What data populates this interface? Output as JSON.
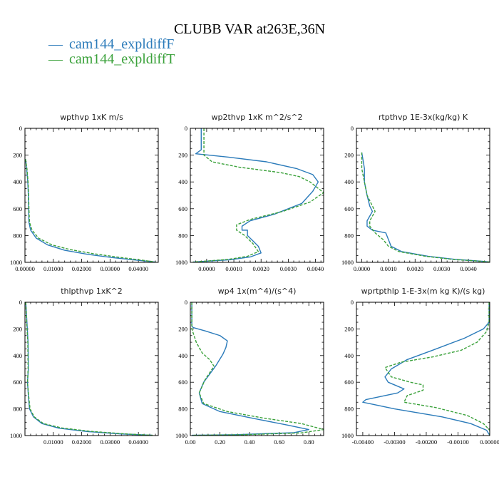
{
  "figure": {
    "title": "CLUBB VAR at263E,36N",
    "legend": [
      {
        "marker": "—",
        "label": "cam144_expldiffF",
        "color": "#2b7bba"
      },
      {
        "marker": "—",
        "label": "cam144_expldiffT",
        "color": "#3aa13a"
      }
    ]
  },
  "chart_data": [
    {
      "type": "line",
      "title": "wpthvp   1xK m/s",
      "xlim": [
        0,
        0.047
      ],
      "ylim": [
        1000,
        0
      ],
      "xticks": [
        0,
        0.01,
        0.02,
        0.03,
        0.04
      ],
      "xtick_labels": [
        "0.00000",
        "0.01000",
        "0.02000",
        "0.03000",
        "0.04000"
      ],
      "yticks": [
        0,
        200,
        400,
        600,
        800,
        1000
      ],
      "ytick_labels": [
        "0",
        "200",
        "400",
        "600",
        "800",
        "1000"
      ],
      "series": [
        {
          "name": "cam144_expldiffF",
          "color": "#2b7bba",
          "dash": "solid",
          "points": [
            [
              0.0002,
              230
            ],
            [
              0.0006,
              300
            ],
            [
              0.001,
              400
            ],
            [
              0.0012,
              500
            ],
            [
              0.0013,
              600
            ],
            [
              0.0014,
              700
            ],
            [
              0.002,
              760
            ],
            [
              0.004,
              820
            ],
            [
              0.008,
              870
            ],
            [
              0.014,
              910
            ],
            [
              0.022,
              940
            ],
            [
              0.031,
              965
            ],
            [
              0.04,
              985
            ],
            [
              0.046,
              998
            ]
          ]
        },
        {
          "name": "cam144_expldiffT",
          "color": "#3aa13a",
          "dash": "dash",
          "points": [
            [
              0.0002,
              230
            ],
            [
              0.0007,
              300
            ],
            [
              0.0011,
              400
            ],
            [
              0.0013,
              500
            ],
            [
              0.0014,
              600
            ],
            [
              0.0016,
              700
            ],
            [
              0.0025,
              760
            ],
            [
              0.0048,
              820
            ],
            [
              0.0095,
              870
            ],
            [
              0.016,
              905
            ],
            [
              0.024,
              935
            ],
            [
              0.033,
              962
            ],
            [
              0.041,
              983
            ],
            [
              0.046,
              998
            ]
          ]
        }
      ]
    },
    {
      "type": "line",
      "title": "wp2thvp   1xK m^2/s^2",
      "xlim": [
        -0.0006,
        0.0043
      ],
      "ylim": [
        1000,
        0
      ],
      "xticks": [
        0,
        0.001,
        0.002,
        0.003,
        0.004
      ],
      "xtick_labels": [
        "0.0000",
        "0.0010",
        "0.0020",
        "0.0030",
        "0.0040"
      ],
      "yticks": [
        0,
        200,
        400,
        600,
        800,
        1000
      ],
      "ytick_labels": [
        "0",
        "200",
        "400",
        "600",
        "800",
        "1000"
      ],
      "series": [
        {
          "name": "cam144_expldiffF",
          "color": "#2b7bba",
          "dash": "solid",
          "points": [
            [
              -0.0002,
              0
            ],
            [
              -0.0002,
              160
            ],
            [
              -0.0004,
              190
            ],
            [
              0.0008,
              215
            ],
            [
              0.0022,
              250
            ],
            [
              0.0033,
              300
            ],
            [
              0.0039,
              345
            ],
            [
              0.0041,
              400
            ],
            [
              0.0039,
              470
            ],
            [
              0.0035,
              560
            ],
            [
              0.0025,
              640
            ],
            [
              0.0016,
              690
            ],
            [
              0.0013,
              730
            ],
            [
              0.0013,
              760
            ],
            [
              0.0015,
              760
            ],
            [
              0.0015,
              800
            ],
            [
              0.0017,
              840
            ],
            [
              0.0019,
              880
            ],
            [
              0.002,
              930
            ],
            [
              0.0016,
              960
            ],
            [
              0.0009,
              980
            ],
            [
              -0.0005,
              998
            ]
          ]
        },
        {
          "name": "cam144_expldiffT",
          "color": "#3aa13a",
          "dash": "dash",
          "points": [
            [
              -0.0001,
              0
            ],
            [
              -0.0001,
              160
            ],
            [
              -0.0001,
              200
            ],
            [
              0.0002,
              250
            ],
            [
              0.0012,
              290
            ],
            [
              0.0027,
              330
            ],
            [
              0.0034,
              360
            ],
            [
              0.0038,
              400
            ],
            [
              0.0043,
              480
            ],
            [
              0.0038,
              550
            ],
            [
              0.0028,
              620
            ],
            [
              0.0016,
              680
            ],
            [
              0.0011,
              720
            ],
            [
              0.0011,
              760
            ],
            [
              0.0014,
              800
            ],
            [
              0.0017,
              860
            ],
            [
              0.0019,
              920
            ],
            [
              0.0015,
              955
            ],
            [
              0.0008,
              978
            ],
            [
              -0.0005,
              998
            ]
          ]
        }
      ]
    },
    {
      "type": "line",
      "title": "rtpthvp   1E-3x(kg/kg) K",
      "xlim": [
        -0.0002,
        0.0048
      ],
      "ylim": [
        1000,
        0
      ],
      "xticks": [
        0,
        0.001,
        0.002,
        0.003,
        0.004
      ],
      "xtick_labels": [
        "0.0000",
        "0.0010",
        "0.0020",
        "0.0030",
        "0.0040"
      ],
      "yticks": [
        0,
        200,
        400,
        600,
        800,
        1000
      ],
      "ytick_labels": [
        "0",
        "200",
        "400",
        "600",
        "800",
        "1000"
      ],
      "series": [
        {
          "name": "cam144_expldiffF",
          "color": "#2b7bba",
          "dash": "solid",
          "points": [
            [
              0.0,
              180
            ],
            [
              0.0001,
              300
            ],
            [
              0.0001,
              400
            ],
            [
              0.0002,
              500
            ],
            [
              0.0003,
              580
            ],
            [
              0.0004,
              620
            ],
            [
              0.0002,
              690
            ],
            [
              0.0002,
              730
            ],
            [
              0.0004,
              760
            ],
            [
              0.0009,
              780
            ],
            [
              0.001,
              830
            ],
            [
              0.0011,
              880
            ],
            [
              0.0015,
              920
            ],
            [
              0.0025,
              955
            ],
            [
              0.0035,
              978
            ],
            [
              0.0045,
              992
            ],
            [
              0.0048,
              998
            ]
          ]
        },
        {
          "name": "cam144_expldiffT",
          "color": "#3aa13a",
          "dash": "dash",
          "points": [
            [
              0.0,
              180
            ],
            [
              0.0,
              300
            ],
            [
              0.0001,
              400
            ],
            [
              0.0002,
              500
            ],
            [
              0.0004,
              580
            ],
            [
              0.0005,
              620
            ],
            [
              0.0003,
              690
            ],
            [
              0.0003,
              730
            ],
            [
              0.0005,
              780
            ],
            [
              0.0008,
              830
            ],
            [
              0.001,
              880
            ],
            [
              0.0014,
              920
            ],
            [
              0.0024,
              955
            ],
            [
              0.0034,
              978
            ],
            [
              0.0045,
              992
            ],
            [
              0.0048,
              998
            ]
          ]
        }
      ]
    },
    {
      "type": "line",
      "title": "thlpthvp   1xK^2",
      "xlim": [
        0,
        0.047
      ],
      "ylim": [
        1000,
        0
      ],
      "xticks": [
        0.01,
        0.02,
        0.03,
        0.04
      ],
      "xtick_labels": [
        "0.01000",
        "0.02000",
        "0.03000",
        "0.04000"
      ],
      "yticks": [
        0,
        200,
        400,
        600,
        800,
        1000
      ],
      "ytick_labels": [
        "0",
        "200",
        "400",
        "600",
        "800",
        "1000"
      ],
      "series": [
        {
          "name": "cam144_expldiffF",
          "color": "#2b7bba",
          "dash": "solid",
          "points": [
            [
              0.0003,
              0
            ],
            [
              0.0007,
              150
            ],
            [
              0.0011,
              300
            ],
            [
              0.0012,
              500
            ],
            [
              0.0009,
              600
            ],
            [
              0.0012,
              700
            ],
            [
              0.0016,
              800
            ],
            [
              0.003,
              860
            ],
            [
              0.006,
              910
            ],
            [
              0.012,
              945
            ],
            [
              0.022,
              970
            ],
            [
              0.034,
              988
            ],
            [
              0.045,
              998
            ]
          ]
        },
        {
          "name": "cam144_expldiffT",
          "color": "#3aa13a",
          "dash": "dash",
          "points": [
            [
              0.0003,
              0
            ],
            [
              0.0006,
              150
            ],
            [
              0.001,
              300
            ],
            [
              0.0011,
              500
            ],
            [
              0.0009,
              600
            ],
            [
              0.0013,
              700
            ],
            [
              0.0018,
              800
            ],
            [
              0.0033,
              860
            ],
            [
              0.0065,
              910
            ],
            [
              0.013,
              943
            ],
            [
              0.023,
              968
            ],
            [
              0.035,
              987
            ],
            [
              0.045,
              998
            ]
          ]
        }
      ]
    },
    {
      "type": "line",
      "title": "wp4   1x(m^4)/(s^4)",
      "xlim": [
        0,
        0.9
      ],
      "ylim": [
        1000,
        0
      ],
      "xticks": [
        0,
        0.2,
        0.4,
        0.6,
        0.8
      ],
      "xtick_labels": [
        "0.00",
        "0.20",
        "0.40",
        "0.60",
        "0.80"
      ],
      "yticks": [
        0,
        200,
        400,
        600,
        800,
        1000
      ],
      "ytick_labels": [
        "0",
        "200",
        "400",
        "600",
        "800",
        "1000"
      ],
      "series": [
        {
          "name": "cam144_expldiffF",
          "color": "#2b7bba",
          "dash": "solid",
          "points": [
            [
              0.01,
              0
            ],
            [
              0.01,
              180
            ],
            [
              0.02,
              190
            ],
            [
              0.1,
              215
            ],
            [
              0.2,
              250
            ],
            [
              0.25,
              290
            ],
            [
              0.24,
              340
            ],
            [
              0.22,
              390
            ],
            [
              0.17,
              480
            ],
            [
              0.09,
              600
            ],
            [
              0.06,
              680
            ],
            [
              0.08,
              760
            ],
            [
              0.2,
              820
            ],
            [
              0.42,
              870
            ],
            [
              0.65,
              920
            ],
            [
              0.8,
              955
            ],
            [
              0.7,
              978
            ],
            [
              0.3,
              994
            ],
            [
              0.01,
              998
            ]
          ]
        },
        {
          "name": "cam144_expldiffT",
          "color": "#3aa13a",
          "dash": "dash",
          "points": [
            [
              0.01,
              0
            ],
            [
              0.01,
              180
            ],
            [
              0.01,
              200
            ],
            [
              0.04,
              300
            ],
            [
              0.08,
              380
            ],
            [
              0.13,
              430
            ],
            [
              0.16,
              480
            ],
            [
              0.1,
              580
            ],
            [
              0.06,
              680
            ],
            [
              0.09,
              760
            ],
            [
              0.25,
              820
            ],
            [
              0.5,
              870
            ],
            [
              0.75,
              910
            ],
            [
              0.9,
              955
            ],
            [
              0.75,
              980
            ],
            [
              0.35,
              994
            ],
            [
              0.01,
              998
            ]
          ]
        }
      ]
    },
    {
      "type": "line",
      "title": "wprtpthlp   1-E-3x(m kg K)/(s kg)",
      "xlim": [
        -0.0042,
        0.0
      ],
      "ylim": [
        1000,
        0
      ],
      "xticks": [
        -0.004,
        -0.003,
        -0.002,
        -0.001,
        0.0
      ],
      "xtick_labels": [
        "-0.00400",
        "-0.00300",
        "-0.00200",
        "-0.00100",
        "0.00000"
      ],
      "yticks": [
        0,
        200,
        400,
        600,
        800,
        1000
      ],
      "ytick_labels": [
        "0",
        "200",
        "400",
        "600",
        "800",
        "1000"
      ],
      "series": [
        {
          "name": "cam144_expldiffF",
          "color": "#2b7bba",
          "dash": "solid",
          "points": [
            [
              -2e-05,
              0
            ],
            [
              -2e-05,
              150
            ],
            [
              -0.0002,
              200
            ],
            [
              -0.0008,
              270
            ],
            [
              -0.0018,
              360
            ],
            [
              -0.0026,
              430
            ],
            [
              -0.0031,
              500
            ],
            [
              -0.0033,
              560
            ],
            [
              -0.0032,
              600
            ],
            [
              -0.0027,
              650
            ],
            [
              -0.0029,
              680
            ],
            [
              -0.0039,
              730
            ],
            [
              -0.004,
              750
            ],
            [
              -0.0038,
              760
            ],
            [
              -0.003,
              800
            ],
            [
              -0.0015,
              860
            ],
            [
              -0.0006,
              910
            ],
            [
              -0.0001,
              960
            ],
            [
              0.0,
              998
            ]
          ]
        },
        {
          "name": "cam144_expldiffT",
          "color": "#3aa13a",
          "dash": "dash",
          "points": [
            [
              -2e-05,
              0
            ],
            [
              -2e-05,
              150
            ],
            [
              -0.0001,
              220
            ],
            [
              -0.0004,
              300
            ],
            [
              -0.0009,
              360
            ],
            [
              -0.0018,
              410
            ],
            [
              -0.0028,
              450
            ],
            [
              -0.0033,
              490
            ],
            [
              -0.0031,
              560
            ],
            [
              -0.0025,
              600
            ],
            [
              -0.0021,
              620
            ],
            [
              -0.0021,
              660
            ],
            [
              -0.0026,
              700
            ],
            [
              -0.0027,
              750
            ],
            [
              -0.0017,
              790
            ],
            [
              -0.0007,
              850
            ],
            [
              -0.0002,
              910
            ],
            [
              0.0,
              960
            ],
            [
              0.0,
              998
            ]
          ]
        }
      ]
    }
  ]
}
